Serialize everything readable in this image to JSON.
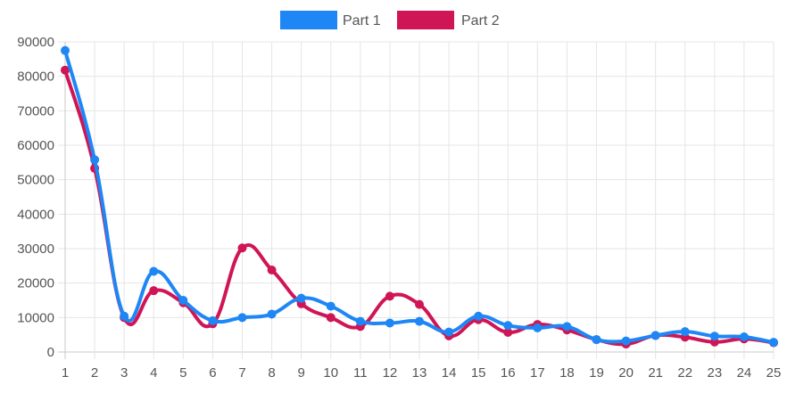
{
  "chart_data": {
    "type": "line",
    "title": "",
    "xlabel": "",
    "ylabel": "",
    "x": [
      1,
      2,
      3,
      4,
      5,
      6,
      7,
      8,
      9,
      10,
      11,
      12,
      13,
      14,
      15,
      16,
      17,
      18,
      19,
      20,
      21,
      22,
      23,
      24,
      25
    ],
    "x_tick_labels": [
      "1",
      "2",
      "3",
      "4",
      "5",
      "6",
      "7",
      "8",
      "9",
      "10",
      "11",
      "12",
      "13",
      "14",
      "15",
      "16",
      "17",
      "18",
      "19",
      "20",
      "21",
      "22",
      "23",
      "24",
      "25"
    ],
    "ylim": [
      0,
      90000
    ],
    "y_ticks": [
      0,
      10000,
      20000,
      30000,
      40000,
      50000,
      60000,
      70000,
      80000,
      90000
    ],
    "y_tick_labels": [
      "0",
      "10000",
      "20000",
      "30000",
      "40000",
      "50000",
      "60000",
      "70000",
      "80000",
      "90000"
    ],
    "grid": true,
    "legend_position": "top-center",
    "series": [
      {
        "name": "Part 1",
        "color": "#1e87f5",
        "values": [
          87500,
          55800,
          10400,
          23400,
          15000,
          9100,
          10000,
          11000,
          15600,
          13300,
          8900,
          8400,
          8900,
          5800,
          10400,
          7700,
          7000,
          7400,
          3600,
          3200,
          4800,
          5900,
          4600,
          4400,
          2800
        ]
      },
      {
        "name": "Part 2",
        "color": "#d01556",
        "values": [
          81800,
          53300,
          10000,
          17800,
          14300,
          8200,
          30200,
          23800,
          14000,
          10000,
          7400,
          16200,
          13800,
          4700,
          9400,
          5700,
          8000,
          6400,
          3600,
          2300,
          4800,
          4300,
          2900,
          3800,
          2700
        ]
      }
    ]
  }
}
